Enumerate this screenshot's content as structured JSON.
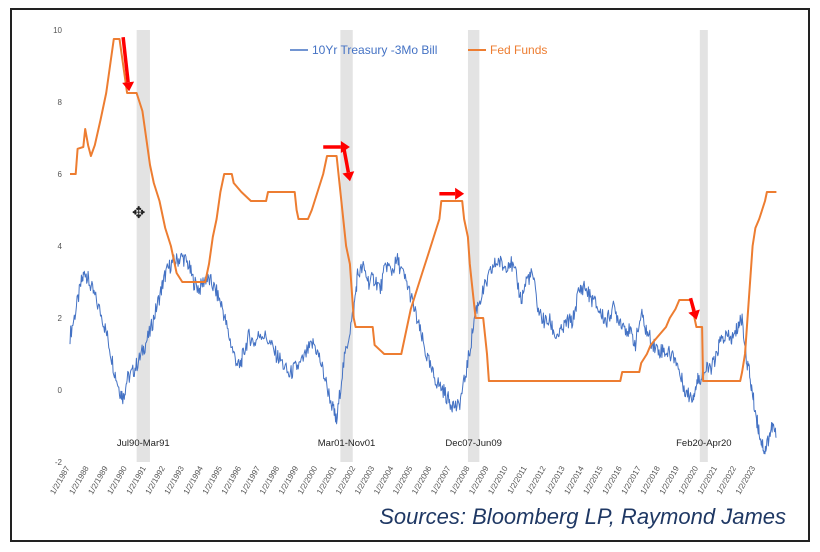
{
  "chart_data": {
    "type": "line",
    "title": "",
    "xlabel": "",
    "ylabel": "",
    "ylim": [
      -2,
      10
    ],
    "xlim": [
      1987.0,
      2024.5
    ],
    "y_ticks": [
      "10",
      "8",
      "6",
      "4",
      "2",
      "0",
      "-2"
    ],
    "x_ticks": [
      "1/2/1987",
      "1/2/1988",
      "1/2/1989",
      "1/2/1990",
      "1/2/1991",
      "1/2/1992",
      "1/2/1993",
      "1/2/1994",
      "1/2/1995",
      "1/2/1996",
      "1/2/1997",
      "1/2/1998",
      "1/2/1999",
      "1/2/2000",
      "1/2/2001",
      "1/2/2002",
      "1/2/2003",
      "1/2/2004",
      "1/2/2005",
      "1/2/2006",
      "1/2/2007",
      "1/2/2008",
      "1/2/2009",
      "1/2/2010",
      "1/2/2011",
      "1/2/2012",
      "1/2/2013",
      "1/2/2014",
      "1/2/2015",
      "1/2/2016",
      "1/2/2017",
      "1/2/2018",
      "1/2/2019",
      "1/2/2020",
      "1/2/2021",
      "1/2/2022",
      "1/2/2023"
    ],
    "legend_position": "top-center",
    "grid": false,
    "recessions": [
      {
        "label": "Jul90-Mar91",
        "start": 1990.5,
        "end": 1991.2
      },
      {
        "label": "Mar01-Nov01",
        "start": 2001.2,
        "end": 2001.85
      },
      {
        "label": "Dec07-Jun09",
        "start": 2007.9,
        "end": 2008.5
      },
      {
        "label": "Feb20-Apr20",
        "start": 2020.08,
        "end": 2020.5
      }
    ],
    "series": [
      {
        "name": "10Yr Treasury -3Mo Bill",
        "color": "#4472c4",
        "points": [
          [
            1987.0,
            1.5
          ],
          [
            1987.3,
            2.2
          ],
          [
            1987.6,
            3.0
          ],
          [
            1987.8,
            3.3
          ],
          [
            1988.0,
            3.0
          ],
          [
            1988.3,
            2.6
          ],
          [
            1988.7,
            2.0
          ],
          [
            1989.0,
            1.4
          ],
          [
            1989.3,
            0.6
          ],
          [
            1989.6,
            0.0
          ],
          [
            1989.8,
            -0.2
          ],
          [
            1990.0,
            0.3
          ],
          [
            1990.3,
            0.5
          ],
          [
            1990.6,
            0.8
          ],
          [
            1990.9,
            1.2
          ],
          [
            1991.2,
            1.6
          ],
          [
            1991.5,
            2.2
          ],
          [
            1991.8,
            2.8
          ],
          [
            1992.0,
            3.2
          ],
          [
            1992.3,
            3.5
          ],
          [
            1992.6,
            3.6
          ],
          [
            1992.9,
            3.7
          ],
          [
            1993.2,
            3.5
          ],
          [
            1993.5,
            3.0
          ],
          [
            1993.8,
            2.8
          ],
          [
            1994.1,
            3.1
          ],
          [
            1994.4,
            3.0
          ],
          [
            1994.7,
            2.7
          ],
          [
            1995.0,
            2.3
          ],
          [
            1995.3,
            1.6
          ],
          [
            1995.6,
            1.0
          ],
          [
            1995.9,
            0.6
          ],
          [
            1996.1,
            1.0
          ],
          [
            1996.4,
            1.5
          ],
          [
            1996.7,
            1.3
          ],
          [
            1997.0,
            1.6
          ],
          [
            1997.4,
            1.4
          ],
          [
            1997.8,
            1.0
          ],
          [
            1998.1,
            0.8
          ],
          [
            1998.5,
            0.4
          ],
          [
            1998.8,
            0.6
          ],
          [
            1999.1,
            0.7
          ],
          [
            1999.5,
            1.1
          ],
          [
            1999.8,
            1.3
          ],
          [
            2000.1,
            0.9
          ],
          [
            2000.4,
            0.3
          ],
          [
            2000.8,
            -0.5
          ],
          [
            2001.0,
            -0.9
          ],
          [
            2001.3,
            0.5
          ],
          [
            2001.6,
            1.4
          ],
          [
            2001.9,
            2.2
          ],
          [
            2002.1,
            3.2
          ],
          [
            2002.4,
            3.4
          ],
          [
            2002.7,
            3.0
          ],
          [
            2003.0,
            3.1
          ],
          [
            2003.3,
            2.8
          ],
          [
            2003.6,
            3.5
          ],
          [
            2003.9,
            3.3
          ],
          [
            2004.2,
            3.6
          ],
          [
            2004.5,
            3.2
          ],
          [
            2004.8,
            2.8
          ],
          [
            2005.1,
            2.2
          ],
          [
            2005.4,
            1.6
          ],
          [
            2005.7,
            1.0
          ],
          [
            2006.0,
            0.5
          ],
          [
            2006.3,
            0.2
          ],
          [
            2006.6,
            0.0
          ],
          [
            2006.9,
            -0.3
          ],
          [
            2007.1,
            -0.4
          ],
          [
            2007.4,
            -0.5
          ],
          [
            2007.7,
            0.2
          ],
          [
            2008.0,
            1.1
          ],
          [
            2008.3,
            2.2
          ],
          [
            2008.6,
            2.6
          ],
          [
            2008.9,
            3.0
          ],
          [
            2009.2,
            3.4
          ],
          [
            2009.5,
            3.6
          ],
          [
            2009.8,
            3.4
          ],
          [
            2010.1,
            3.6
          ],
          [
            2010.4,
            3.2
          ],
          [
            2010.7,
            2.5
          ],
          [
            2011.0,
            3.1
          ],
          [
            2011.3,
            3.2
          ],
          [
            2011.6,
            2.2
          ],
          [
            2011.9,
            1.9
          ],
          [
            2012.2,
            1.9
          ],
          [
            2012.5,
            1.5
          ],
          [
            2012.8,
            1.6
          ],
          [
            2013.1,
            1.9
          ],
          [
            2013.4,
            1.9
          ],
          [
            2013.7,
            2.7
          ],
          [
            2014.0,
            2.9
          ],
          [
            2014.3,
            2.6
          ],
          [
            2014.6,
            2.4
          ],
          [
            2014.9,
            2.1
          ],
          [
            2015.2,
            1.9
          ],
          [
            2015.5,
            2.3
          ],
          [
            2015.8,
            2.0
          ],
          [
            2016.1,
            1.8
          ],
          [
            2016.4,
            1.6
          ],
          [
            2016.7,
            1.3
          ],
          [
            2017.0,
            2.1
          ],
          [
            2017.3,
            1.6
          ],
          [
            2017.6,
            1.3
          ],
          [
            2017.9,
            1.1
          ],
          [
            2018.2,
            1.1
          ],
          [
            2018.5,
            1.0
          ],
          [
            2018.8,
            0.9
          ],
          [
            2019.1,
            0.3
          ],
          [
            2019.4,
            -0.1
          ],
          [
            2019.7,
            -0.2
          ],
          [
            2019.9,
            0.2
          ],
          [
            2020.0,
            0.3
          ],
          [
            2020.3,
            0.5
          ],
          [
            2020.6,
            0.6
          ],
          [
            2020.9,
            0.8
          ],
          [
            2021.1,
            1.3
          ],
          [
            2021.4,
            1.5
          ],
          [
            2021.7,
            1.4
          ],
          [
            2021.9,
            1.5
          ],
          [
            2022.1,
            1.8
          ],
          [
            2022.3,
            2.0
          ],
          [
            2022.5,
            1.0
          ],
          [
            2022.7,
            0.4
          ],
          [
            2022.9,
            -0.3
          ],
          [
            2023.1,
            -0.9
          ],
          [
            2023.3,
            -1.4
          ],
          [
            2023.5,
            -1.7
          ],
          [
            2023.7,
            -1.3
          ],
          [
            2023.9,
            -1.0
          ],
          [
            2024.1,
            -1.3
          ]
        ]
      },
      {
        "name": "Fed Funds",
        "color": "#ed7d31",
        "points": [
          [
            1987.0,
            6.0
          ],
          [
            1987.3,
            6.0
          ],
          [
            1987.4,
            6.7
          ],
          [
            1987.7,
            6.75
          ],
          [
            1987.8,
            7.25
          ],
          [
            1987.95,
            6.8
          ],
          [
            1988.1,
            6.5
          ],
          [
            1988.3,
            6.8
          ],
          [
            1988.6,
            7.5
          ],
          [
            1988.9,
            8.25
          ],
          [
            1989.1,
            9.0
          ],
          [
            1989.3,
            9.75
          ],
          [
            1989.6,
            9.75
          ],
          [
            1989.8,
            9.0
          ],
          [
            1990.0,
            8.25
          ],
          [
            1990.5,
            8.25
          ],
          [
            1990.8,
            7.75
          ],
          [
            1991.0,
            7.0
          ],
          [
            1991.2,
            6.25
          ],
          [
            1991.4,
            5.75
          ],
          [
            1991.7,
            5.25
          ],
          [
            1992.0,
            4.5
          ],
          [
            1992.3,
            4.0
          ],
          [
            1992.6,
            3.25
          ],
          [
            1992.9,
            3.0
          ],
          [
            1994.1,
            3.0
          ],
          [
            1994.3,
            3.5
          ],
          [
            1994.5,
            4.25
          ],
          [
            1994.7,
            4.75
          ],
          [
            1994.9,
            5.5
          ],
          [
            1995.1,
            6.0
          ],
          [
            1995.5,
            6.0
          ],
          [
            1995.6,
            5.75
          ],
          [
            1996.0,
            5.5
          ],
          [
            1996.5,
            5.25
          ],
          [
            1997.3,
            5.25
          ],
          [
            1997.4,
            5.5
          ],
          [
            1998.8,
            5.5
          ],
          [
            1998.9,
            5.0
          ],
          [
            1999.0,
            4.75
          ],
          [
            1999.5,
            4.75
          ],
          [
            1999.7,
            5.0
          ],
          [
            2000.0,
            5.5
          ],
          [
            2000.3,
            6.0
          ],
          [
            2000.5,
            6.5
          ],
          [
            2001.0,
            6.5
          ],
          [
            2001.1,
            6.0
          ],
          [
            2001.3,
            5.0
          ],
          [
            2001.5,
            4.0
          ],
          [
            2001.7,
            3.5
          ],
          [
            2001.9,
            2.0
          ],
          [
            2002.0,
            1.75
          ],
          [
            2002.9,
            1.75
          ],
          [
            2003.0,
            1.25
          ],
          [
            2003.5,
            1.0
          ],
          [
            2004.4,
            1.0
          ],
          [
            2004.6,
            1.5
          ],
          [
            2004.9,
            2.25
          ],
          [
            2005.2,
            2.75
          ],
          [
            2005.5,
            3.25
          ],
          [
            2005.8,
            3.75
          ],
          [
            2006.1,
            4.25
          ],
          [
            2006.4,
            4.75
          ],
          [
            2006.5,
            5.25
          ],
          [
            2007.6,
            5.25
          ],
          [
            2007.7,
            4.75
          ],
          [
            2007.9,
            4.25
          ],
          [
            2008.0,
            3.5
          ],
          [
            2008.1,
            3.0
          ],
          [
            2008.3,
            2.0
          ],
          [
            2008.7,
            2.0
          ],
          [
            2008.8,
            1.5
          ],
          [
            2008.9,
            1.0
          ],
          [
            2009.0,
            0.25
          ],
          [
            2015.9,
            0.25
          ],
          [
            2016.0,
            0.5
          ],
          [
            2016.9,
            0.5
          ],
          [
            2017.0,
            0.75
          ],
          [
            2017.3,
            1.0
          ],
          [
            2017.5,
            1.25
          ],
          [
            2017.9,
            1.5
          ],
          [
            2018.3,
            1.75
          ],
          [
            2018.5,
            2.0
          ],
          [
            2018.8,
            2.25
          ],
          [
            2019.0,
            2.5
          ],
          [
            2019.6,
            2.5
          ],
          [
            2019.7,
            2.25
          ],
          [
            2019.8,
            2.0
          ],
          [
            2019.9,
            1.75
          ],
          [
            2020.2,
            1.75
          ],
          [
            2020.25,
            0.25
          ],
          [
            2022.2,
            0.25
          ],
          [
            2022.3,
            0.5
          ],
          [
            2022.45,
            1.0
          ],
          [
            2022.55,
            1.75
          ],
          [
            2022.65,
            2.5
          ],
          [
            2022.75,
            3.25
          ],
          [
            2022.85,
            4.0
          ],
          [
            2023.0,
            4.5
          ],
          [
            2023.2,
            4.75
          ],
          [
            2023.35,
            5.0
          ],
          [
            2023.5,
            5.25
          ],
          [
            2023.6,
            5.5
          ],
          [
            2024.1,
            5.5
          ]
        ]
      }
    ],
    "annotations": [
      {
        "type": "arrow-down",
        "x": 1990.0,
        "y1": 9.8,
        "y2": 8.3
      },
      {
        "type": "arrow-right",
        "x1": 2000.3,
        "x2": 2001.7,
        "y": 6.75
      },
      {
        "type": "arrow-down",
        "x": 2001.6,
        "y1": 6.7,
        "y2": 5.8
      },
      {
        "type": "arrow-right",
        "x1": 2006.4,
        "x2": 2007.7,
        "y": 5.45
      },
      {
        "type": "arrow-down",
        "x": 2019.8,
        "y1": 2.55,
        "y2": 1.95
      }
    ]
  },
  "source_note": "Sources: Bloomberg LP, Raymond James",
  "icons": {
    "cursor": "move-cursor-icon"
  }
}
